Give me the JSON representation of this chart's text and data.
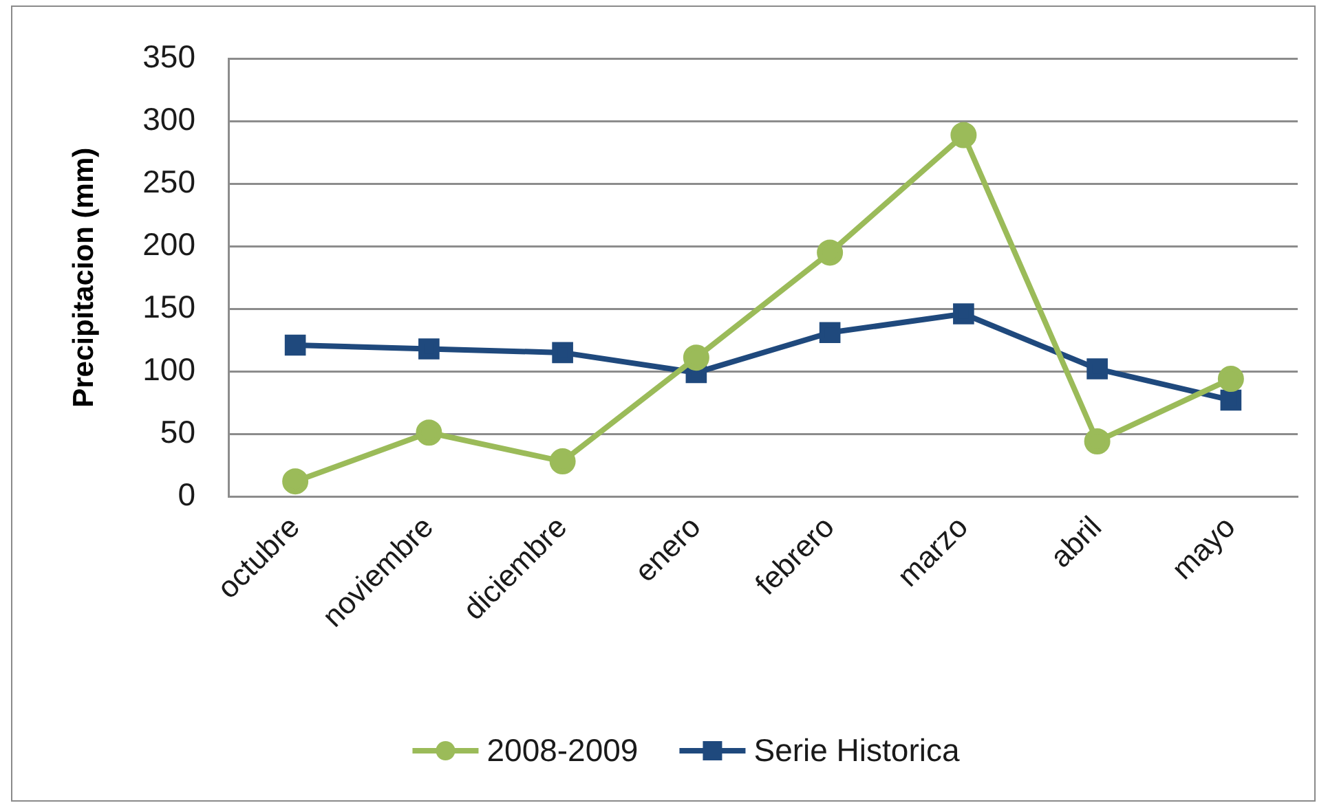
{
  "chart_data": {
    "type": "line",
    "ylabel": "Precipitacion (mm)",
    "categories": [
      "octubre",
      "noviembre",
      "diciembre",
      "enero",
      "febrero",
      "marzo",
      "abril",
      "mayo"
    ],
    "series": [
      {
        "name": "2008-2009",
        "color": "#9bbb59",
        "marker": "circle",
        "values": [
          12,
          51,
          28,
          111,
          195,
          289,
          44,
          94
        ]
      },
      {
        "name": "Serie Historica",
        "color": "#1f497d",
        "marker": "square",
        "values": [
          121,
          118,
          115,
          99,
          131,
          146,
          102,
          77
        ]
      }
    ],
    "ylim": [
      0,
      350
    ],
    "yticks": [
      0,
      50,
      100,
      150,
      200,
      250,
      300,
      350
    ],
    "grid": "y",
    "legend": "bottom"
  }
}
